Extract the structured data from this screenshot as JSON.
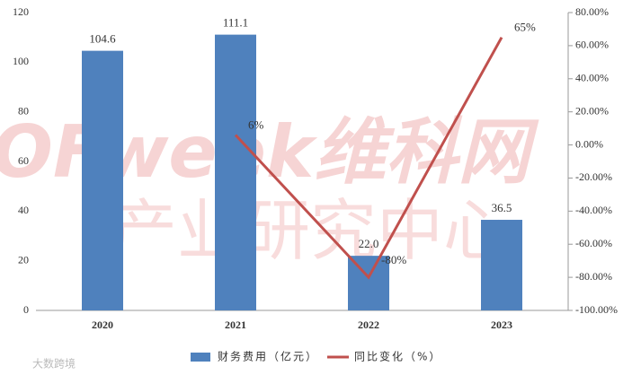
{
  "chart_data": {
    "type": "bar",
    "categories": [
      "2020",
      "2021",
      "2022",
      "2023"
    ],
    "series": [
      {
        "name": "财务费用（亿元）",
        "type": "bar",
        "color": "#4f81bd",
        "values": [
          104.6,
          111.1,
          22.0,
          36.5
        ],
        "value_labels": [
          "104.6",
          "111.1",
          "22.0",
          "36.5"
        ]
      },
      {
        "name": "同比变化（%）",
        "type": "line",
        "axis": "y2",
        "color": "#c0504d",
        "values": [
          null,
          6,
          -80,
          65
        ],
        "value_labels": [
          null,
          "6%",
          "-80%",
          "65%"
        ]
      }
    ],
    "ylim": [
      0,
      120
    ],
    "yticks": [
      0,
      20,
      40,
      60,
      80,
      100,
      120
    ],
    "y2lim": [
      -100,
      80
    ],
    "y2ticks": [
      {
        "value": -100,
        "label": "-100.00%"
      },
      {
        "value": -80,
        "label": "-80.00%"
      },
      {
        "value": -60,
        "label": "-60.00%"
      },
      {
        "value": -40,
        "label": "-40.00%"
      },
      {
        "value": -20,
        "label": "-20.00%"
      },
      {
        "value": 0,
        "label": "0.00%"
      },
      {
        "value": 20,
        "label": "20.00%"
      },
      {
        "value": 40,
        "label": "40.00%"
      },
      {
        "value": 60,
        "label": "60.00%"
      },
      {
        "value": 80,
        "label": "80.00%"
      }
    ],
    "legend": "bottom",
    "watermark": [
      "OFweek维科网",
      "产业研究中心"
    ],
    "source_logo": "大数跨境"
  }
}
